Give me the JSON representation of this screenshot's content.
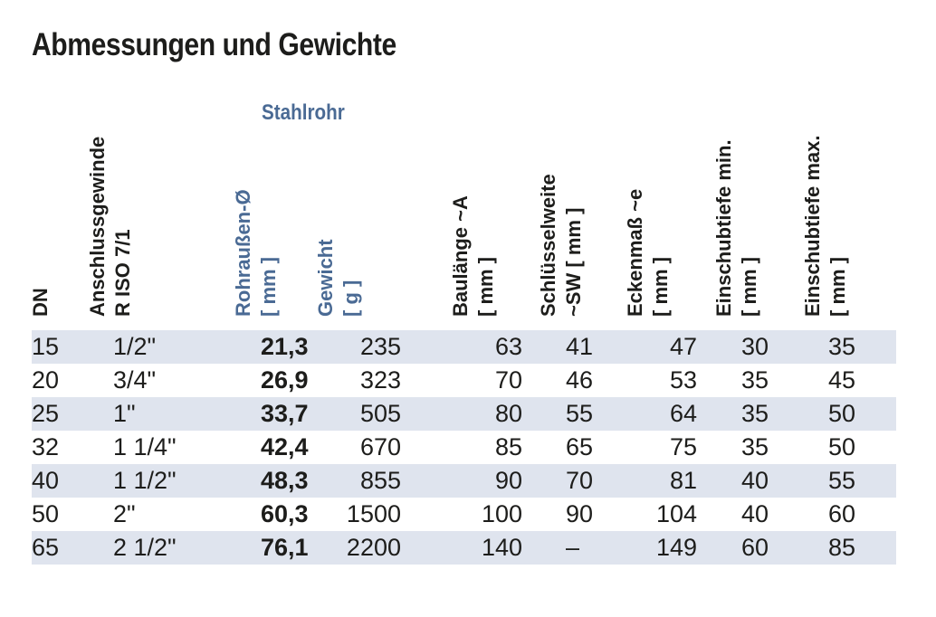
{
  "title": "Abmessungen und Gewichte",
  "group_label": "Stahlrohr",
  "headers": {
    "dn": [
      "DN"
    ],
    "thread": [
      "Anschlussgewinde",
      "R ISO 7/1"
    ],
    "od": [
      "Rohraußen-Ø",
      "[ mm ]"
    ],
    "weight": [
      "Gewicht",
      "[ g ]"
    ],
    "length": [
      "Baulänge ~A",
      "[ mm ]"
    ],
    "sw": [
      "Schlüsselweite",
      "~SW [ mm ]"
    ],
    "corner": [
      "Eckenmaß ~e",
      "[ mm ]"
    ],
    "min": [
      "Einschubtiefe min.",
      "[ mm ]"
    ],
    "max": [
      "Einschubtiefe max.",
      "[ mm ]"
    ]
  },
  "rows": [
    {
      "dn": "15",
      "thread": "1/2\"",
      "od": "21,3",
      "weight": "235",
      "length": "63",
      "sw": "41",
      "corner": "47",
      "min": "30",
      "max": "35"
    },
    {
      "dn": "20",
      "thread": "3/4\"",
      "od": "26,9",
      "weight": "323",
      "length": "70",
      "sw": "46",
      "corner": "53",
      "min": "35",
      "max": "45"
    },
    {
      "dn": "25",
      "thread": "1\"",
      "od": "33,7",
      "weight": "505",
      "length": "80",
      "sw": "55",
      "corner": "64",
      "min": "35",
      "max": "50"
    },
    {
      "dn": "32",
      "thread": "1 1/4\"",
      "od": "42,4",
      "weight": "670",
      "length": "85",
      "sw": "65",
      "corner": "75",
      "min": "35",
      "max": "50"
    },
    {
      "dn": "40",
      "thread": "1 1/2\"",
      "od": "48,3",
      "weight": "855",
      "length": "90",
      "sw": "70",
      "corner": "81",
      "min": "40",
      "max": "55"
    },
    {
      "dn": "50",
      "thread": "2\"",
      "od": "60,3",
      "weight": "1500",
      "length": "100",
      "sw": "90",
      "corner": "104",
      "min": "40",
      "max": "60"
    },
    {
      "dn": "65",
      "thread": "2 1/2\"",
      "od": "76,1",
      "weight": "2200",
      "length": "140",
      "sw": "–",
      "corner": "149",
      "min": "60",
      "max": "85"
    }
  ],
  "colors": {
    "accent_blue": "#4a6a94",
    "row_shade": "#dfe4ee",
    "text": "#1d1d1b"
  }
}
